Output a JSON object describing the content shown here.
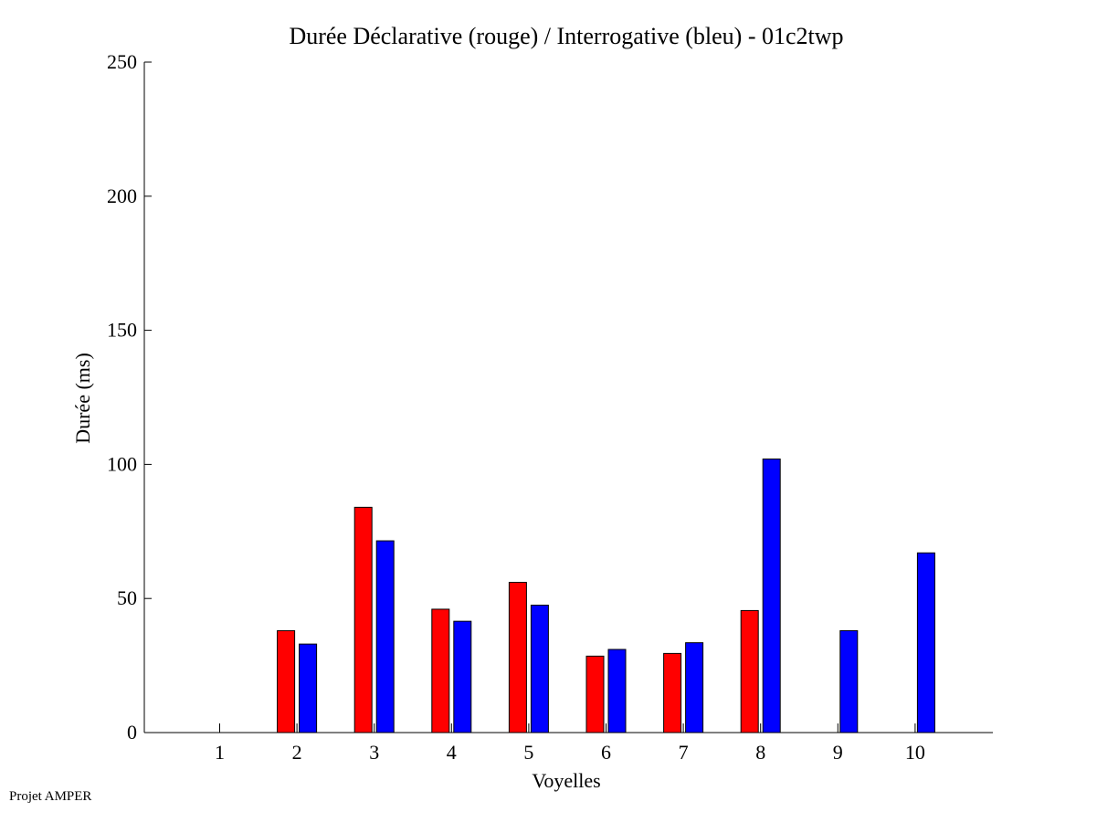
{
  "footer_text": "Projet AMPER",
  "chart_data": {
    "type": "bar",
    "title": "Durée Déclarative (rouge) / Interrogative (bleu) - 01c2twp",
    "xlabel": "Voyelles",
    "ylabel": "Durée (ms)",
    "categories": [
      "1",
      "2",
      "3",
      "4",
      "5",
      "6",
      "7",
      "8",
      "9",
      "10"
    ],
    "ylim": [
      0,
      250
    ],
    "yticks": [
      0,
      50,
      100,
      150,
      200,
      250
    ],
    "grid": false,
    "series": [
      {
        "color": "#ff0000",
        "values": [
          0,
          38,
          84,
          46,
          56,
          28.5,
          29.5,
          45.5,
          0,
          0
        ]
      },
      {
        "color": "#0000ff",
        "values": [
          0,
          33,
          71.5,
          41.5,
          47.5,
          31,
          33.5,
          102,
          38,
          67
        ]
      }
    ]
  }
}
